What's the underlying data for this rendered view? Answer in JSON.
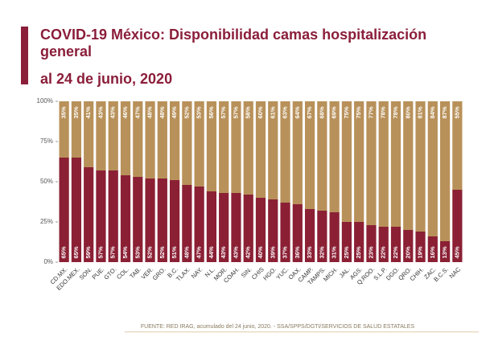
{
  "chart_data": {
    "type": "stacked-bar",
    "title": "COVID-19 México: Disponibilidad camas hospitalización general",
    "subtitle": "al 24 de junio, 2020",
    "source": "FUENTE: RED IRAG, acumulado del 24 junio, 2020. - SSA/SPPS/DGTI/SERVICIOS DE SALUD ESTATALES",
    "categories": [
      "CD.MX.",
      "EDO.MEX.",
      "SON.",
      "PUE.",
      "GTO.",
      "COL.",
      "TAB.",
      "VER.",
      "GRO.",
      "B.C.",
      "TLAX.",
      "NAY.",
      "N.L.",
      "MOR.",
      "COAH.",
      "SIN.",
      "CHIS",
      "HGO.",
      "YUC.",
      "OAX.",
      "CAMP.",
      "TAMPS.",
      "MICH.",
      "JAL.",
      "AGS.",
      "Q.ROO.",
      "S.L.P.",
      "DGO.",
      "QRO.",
      "CHIH.",
      "ZAC.",
      "B.C.S.",
      "NAC"
    ],
    "series": [
      {
        "color": "#8b2035",
        "values": [
          65,
          65,
          59,
          57,
          57,
          54,
          53,
          52,
          52,
          51,
          48,
          47,
          44,
          43,
          43,
          42,
          40,
          39,
          37,
          36,
          33,
          32,
          31,
          25,
          25,
          23,
          22,
          22,
          20,
          19,
          16,
          13,
          45
        ],
        "value_labels": [
          "65%",
          "65%",
          "59%",
          "57%",
          "57%",
          "54%",
          "53%",
          "52%",
          "52%",
          "51%",
          "48%",
          "47%",
          "44%",
          "43%",
          "43%",
          "42%",
          "40%",
          "39%",
          "37%",
          "36%",
          "33%",
          "32%",
          "31%",
          "25%",
          "25%",
          "23%",
          "22%",
          "22%",
          "20%",
          "19%",
          "16%",
          "13%",
          "45%"
        ]
      },
      {
        "color": "#b8915a",
        "values": [
          35,
          35,
          41,
          43,
          43,
          46,
          47,
          48,
          48,
          49,
          52,
          53,
          56,
          57,
          57,
          58,
          60,
          61,
          63,
          64,
          67,
          68,
          69,
          75,
          75,
          77,
          78,
          78,
          80,
          81,
          84,
          87,
          55
        ],
        "value_labels": [
          "35%",
          "35%",
          "41%",
          "43%",
          "43%",
          "46%",
          "47%",
          "48%",
          "48%",
          "49%",
          "52%",
          "53%",
          "56%",
          "57%",
          "57%",
          "58%",
          "60%",
          "61%",
          "63%",
          "64%",
          "67%",
          "68%",
          "69%",
          "75%",
          "75%",
          "77%",
          "78%",
          "78%",
          "80%",
          "81%",
          "84%",
          "87%",
          "55%"
        ]
      }
    ],
    "ylim": [
      0,
      100
    ],
    "yticks": [
      {
        "value": 0,
        "label": "0%"
      },
      {
        "value": 25,
        "label": "25%"
      },
      {
        "value": 50,
        "label": "50%"
      },
      {
        "value": 75,
        "label": "75%"
      },
      {
        "value": 100,
        "label": "100%"
      }
    ]
  }
}
